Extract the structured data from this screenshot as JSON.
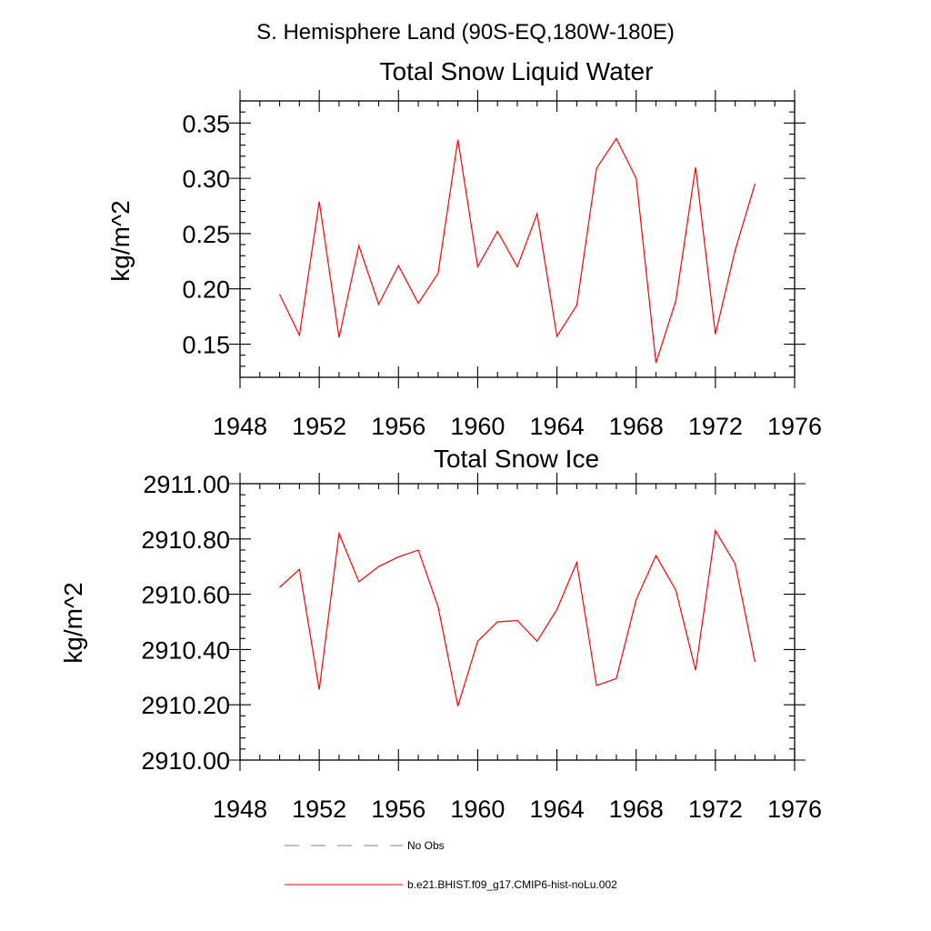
{
  "figure_title": "S. Hemisphere Land (90S-EQ,180W-180E)",
  "chart_data": [
    {
      "type": "line",
      "title": "Total Snow Liquid Water",
      "xlabel": "",
      "ylabel": "kg/m^2",
      "xlim": [
        1948,
        1976
      ],
      "ylim": [
        0.12,
        0.37
      ],
      "xticks": [
        1948,
        1952,
        1956,
        1960,
        1964,
        1968,
        1972,
        1976
      ],
      "xtick_labels": [
        "1948",
        "1952",
        "1956",
        "1960",
        "1964",
        "1968",
        "1972",
        "1976"
      ],
      "yticks": [
        0.15,
        0.2,
        0.25,
        0.3,
        0.35
      ],
      "ytick_labels": [
        "0.15",
        "0.20",
        "0.25",
        "0.30",
        "0.35"
      ],
      "grid": false,
      "x": [
        1950,
        1951,
        1952,
        1953,
        1954,
        1955,
        1956,
        1957,
        1958,
        1959,
        1960,
        1961,
        1962,
        1963,
        1964,
        1965,
        1966,
        1967,
        1968,
        1969,
        1970,
        1971,
        1972,
        1973,
        1974
      ],
      "series": [
        {
          "name": "b.e21.BHIST.f09_g17.CMIP6-hist-noLu.002",
          "color": "#ff0000",
          "values": [
            0.195,
            0.158,
            0.279,
            0.156,
            0.239,
            0.186,
            0.221,
            0.187,
            0.214,
            0.335,
            0.22,
            0.252,
            0.22,
            0.268,
            0.157,
            0.185,
            0.309,
            0.336,
            0.3,
            0.133,
            0.189,
            0.31,
            0.159,
            0.235,
            0.295
          ]
        }
      ]
    },
    {
      "type": "line",
      "title": "Total Snow Ice",
      "xlabel": "",
      "ylabel": "kg/m^2",
      "xlim": [
        1948,
        1976
      ],
      "ylim": [
        2910.0,
        2911.0
      ],
      "xticks": [
        1948,
        1952,
        1956,
        1960,
        1964,
        1968,
        1972,
        1976
      ],
      "xtick_labels": [
        "1948",
        "1952",
        "1956",
        "1960",
        "1964",
        "1968",
        "1972",
        "1976"
      ],
      "yticks": [
        2910.0,
        2910.2,
        2910.4,
        2910.6,
        2910.8,
        2911.0
      ],
      "ytick_labels": [
        "2910.00",
        "2910.20",
        "2910.40",
        "2910.60",
        "2910.80",
        "2911.00"
      ],
      "grid": false,
      "x": [
        1950,
        1951,
        1952,
        1953,
        1954,
        1955,
        1956,
        1957,
        1958,
        1959,
        1960,
        1961,
        1962,
        1963,
        1964,
        1965,
        1966,
        1967,
        1968,
        1969,
        1970,
        1971,
        1972,
        1973,
        1974
      ],
      "series": [
        {
          "name": "b.e21.BHIST.f09_g17.CMIP6-hist-noLu.002",
          "color": "#ff0000",
          "values": [
            2910.625,
            2910.69,
            2910.255,
            2910.82,
            2910.645,
            2910.7,
            2910.735,
            2910.76,
            2910.555,
            2910.195,
            2910.43,
            2910.5,
            2910.505,
            2910.43,
            2910.545,
            2910.715,
            2910.27,
            2910.295,
            2910.58,
            2910.74,
            2910.615,
            2910.325,
            2910.83,
            2910.71,
            2910.355
          ]
        }
      ]
    }
  ],
  "legend": {
    "placement": "bottom",
    "entries": [
      {
        "label": "No Obs",
        "color": "#7f7f9f",
        "style": "dashed"
      },
      {
        "label": "b.e21.BHIST.f09_g17.CMIP6-hist-noLu.002",
        "color": "#ff0000",
        "style": "solid"
      }
    ]
  }
}
